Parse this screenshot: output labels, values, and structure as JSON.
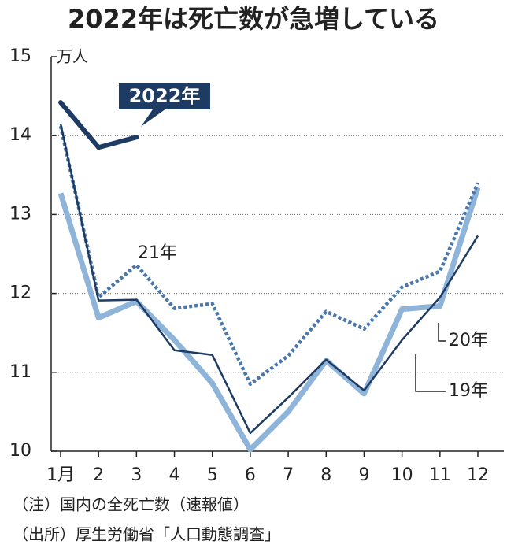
{
  "chart_data": {
    "type": "line",
    "title": "2022年は死亡数が急増している",
    "y_unit": "万人",
    "categories": [
      "1月",
      "2",
      "3",
      "4",
      "5",
      "6",
      "7",
      "8",
      "9",
      "10",
      "11",
      "12"
    ],
    "ylim": [
      10,
      15
    ],
    "yticks": [
      10,
      11,
      12,
      13,
      14,
      15
    ],
    "grid": true,
    "series": [
      {
        "name": "2022年",
        "color": "#1d3b63",
        "line_style": "solid",
        "values": [
          14.42,
          13.85,
          13.98,
          null,
          null,
          null,
          null,
          null,
          null,
          null,
          null,
          null
        ]
      },
      {
        "name": "21年",
        "color": "#4a78ab",
        "line_style": "dotted",
        "values": [
          14.12,
          11.95,
          12.36,
          11.81,
          11.87,
          10.85,
          11.21,
          11.77,
          11.55,
          12.08,
          12.28,
          13.4
        ]
      },
      {
        "name": "20年",
        "color": "#8fb4d9",
        "line_style": "solid",
        "values": [
          13.27,
          11.69,
          11.9,
          11.41,
          10.86,
          10.02,
          10.5,
          11.15,
          10.73,
          11.8,
          11.84,
          13.34
        ]
      },
      {
        "name": "19年",
        "color": "#1d3b63",
        "line_style": "solid",
        "values": [
          14.15,
          11.91,
          11.92,
          11.28,
          11.22,
          10.23,
          10.68,
          11.16,
          10.77,
          11.41,
          11.95,
          12.73
        ]
      }
    ],
    "notes": [
      "（注）国内の全死亡数（速報値）",
      "（出所）厚生労働省「人口動態調査」"
    ]
  }
}
